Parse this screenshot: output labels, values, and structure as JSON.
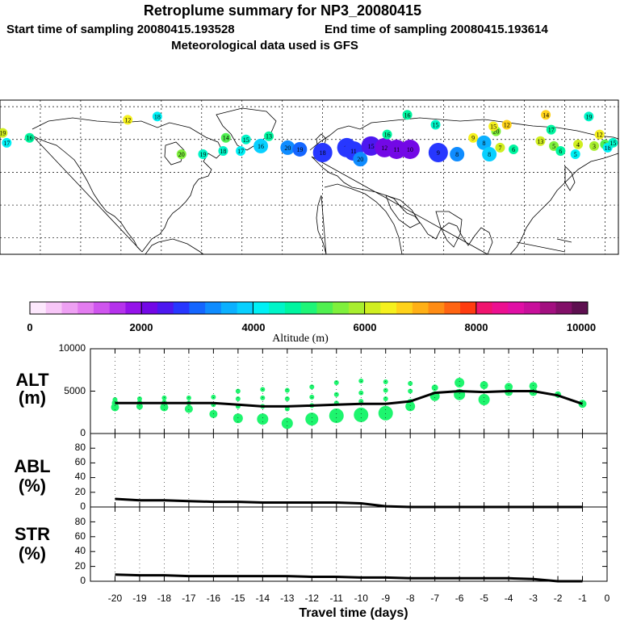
{
  "header": {
    "title": "Retroplume summary for NP3_20080415",
    "start_label": "Start time of sampling 20080415.193528",
    "end_label": "End time of sampling 20080415.193614",
    "met_label": "Meteorological data used is GFS"
  },
  "colors": {
    "scale": [
      "#fde8fd",
      "#f7c6f7",
      "#eea0f3",
      "#e37cf0",
      "#cf55ee",
      "#b532ec",
      "#9513ea",
      "#7308e6",
      "#4d18f0",
      "#2737ff",
      "#1466ff",
      "#0f8cff",
      "#0bb0ff",
      "#08d0ff",
      "#00f0f5",
      "#00f5c8",
      "#00f5a0",
      "#1ef578",
      "#50f050",
      "#7ff03c",
      "#a8ee2e",
      "#d0ee20",
      "#f5f01e",
      "#ffd21a",
      "#ffb016",
      "#ff8c14",
      "#ff6412",
      "#ff3c10",
      "#f0146e",
      "#ec1090",
      "#e010a5",
      "#c8109b",
      "#a31080",
      "#821068",
      "#5e1050"
    ],
    "marker_green": "#1ef56e",
    "line": "#000000"
  },
  "chart_data": [
    {
      "type": "scatter",
      "name": "map",
      "markers": [
        {
          "label": "12",
          "lon": -85,
          "lat": 72,
          "alt": 6500
        },
        {
          "label": "18",
          "lon": -63,
          "lat": 74,
          "alt": 4200
        },
        {
          "label": "19",
          "lon": -178,
          "lat": 64,
          "alt": 6000
        },
        {
          "label": "16",
          "lon": -158,
          "lat": 61,
          "alt": 4600
        },
        {
          "label": "17",
          "lon": -175,
          "lat": 58,
          "alt": 4200
        },
        {
          "label": "20",
          "lon": -45,
          "lat": 51,
          "alt": 5600
        },
        {
          "label": "19",
          "lon": -29,
          "lat": 51,
          "alt": 4400
        },
        {
          "label": "18",
          "lon": -14,
          "lat": 53,
          "alt": 4300
        },
        {
          "label": "17",
          "lon": -1,
          "lat": 53,
          "alt": 4200
        },
        {
          "label": "15",
          "lon": 3,
          "lat": 60,
          "alt": 4500
        },
        {
          "label": "14",
          "lon": -12,
          "lat": 61,
          "alt": 5200
        },
        {
          "label": "16",
          "lon": 14,
          "lat": 56,
          "alt": 3800
        },
        {
          "label": "13",
          "lon": 20,
          "lat": 62,
          "alt": 4800
        },
        {
          "label": "20",
          "lon": 34,
          "lat": 55,
          "alt": 3200
        },
        {
          "label": "19",
          "lon": 43,
          "lat": 54,
          "alt": 3000
        },
        {
          "label": "18",
          "lon": 60,
          "lat": 52,
          "alt": 2800
        },
        {
          "label": "17",
          "lon": 78,
          "lat": 55,
          "alt": 2600
        },
        {
          "label": "11",
          "lon": 83,
          "lat": 53,
          "alt": 2700
        },
        {
          "label": "20",
          "lon": 88,
          "lat": 48,
          "alt": 3400
        },
        {
          "label": "15",
          "lon": 96,
          "lat": 56,
          "alt": 2300
        },
        {
          "label": "12",
          "lon": 106,
          "lat": 55,
          "alt": 2200
        },
        {
          "label": "11",
          "lon": 115,
          "lat": 54,
          "alt": 2100
        },
        {
          "label": "10",
          "lon": 125,
          "lat": 54,
          "alt": 2200
        },
        {
          "label": "9",
          "lon": 146,
          "lat": 52,
          "alt": 2600
        },
        {
          "label": "8",
          "lon": 160,
          "lat": 51,
          "alt": 3300
        },
        {
          "label": "16",
          "lon": 123,
          "lat": 75,
          "alt": 4700
        },
        {
          "label": "15",
          "lon": 144,
          "lat": 69,
          "alt": 4500
        },
        {
          "label": "16",
          "lon": 108,
          "lat": 63,
          "alt": 4600
        },
        {
          "label": "9",
          "lon": 172,
          "lat": 61,
          "alt": 6500
        },
        {
          "label": "8",
          "lon": 180,
          "lat": 58,
          "alt": 3500
        },
        {
          "label": "8",
          "lon": 184,
          "lat": 51,
          "alt": 3800
        },
        {
          "label": "7",
          "lon": 192,
          "lat": 55,
          "alt": 6000
        },
        {
          "label": "6",
          "lon": 202,
          "lat": 54,
          "alt": 4600
        },
        {
          "label": "20",
          "lon": 189,
          "lat": 65,
          "alt": 5500
        },
        {
          "label": "12",
          "lon": 197,
          "lat": 69,
          "alt": 6800
        },
        {
          "label": "15",
          "lon": 187,
          "lat": 68,
          "alt": 6500
        },
        {
          "label": "14",
          "lon": 226,
          "lat": 75,
          "alt": 6800
        },
        {
          "label": "17",
          "lon": 230,
          "lat": 66,
          "alt": 4800
        },
        {
          "label": "19",
          "lon": 258,
          "lat": 74,
          "alt": 4400
        },
        {
          "label": "13",
          "lon": 222,
          "lat": 59,
          "alt": 6000
        },
        {
          "label": "5",
          "lon": 232,
          "lat": 56,
          "alt": 5600
        },
        {
          "label": "6",
          "lon": 237,
          "lat": 53,
          "alt": 4600
        },
        {
          "label": "4",
          "lon": 250,
          "lat": 57,
          "alt": 6200
        },
        {
          "label": "5",
          "lon": 248,
          "lat": 51,
          "alt": 4200
        },
        {
          "label": "3",
          "lon": 262,
          "lat": 56,
          "alt": 5900
        },
        {
          "label": "2",
          "lon": 270,
          "lat": 57,
          "alt": 5200
        },
        {
          "label": "12",
          "lon": 266,
          "lat": 63,
          "alt": 6500
        },
        {
          "label": "18",
          "lon": 272,
          "lat": 55,
          "alt": 4200
        },
        {
          "label": "15",
          "lon": 276,
          "lat": 58,
          "alt": 4300
        }
      ]
    },
    {
      "type": "colorbar",
      "name": "altitude-colorbar",
      "range": [
        0,
        10000
      ],
      "tick_labels": [
        "0",
        "2000",
        "4000",
        "6000",
        "8000",
        "10000"
      ],
      "xlabel": "Altitude (m)"
    },
    {
      "type": "line",
      "name": "alt",
      "ylabel": "ALT\n(m)",
      "ylabel_line1": "ALT",
      "ylabel_line2": "(m)",
      "ylim": [
        0,
        10000
      ],
      "ytick_labels": [
        "10000",
        "5000",
        "0"
      ],
      "x": [
        -20,
        -19,
        -18,
        -17,
        -16,
        -15,
        -14,
        -13,
        -12,
        -11,
        -10,
        -9,
        -8,
        -7,
        -6,
        -5,
        -4,
        -3,
        -2,
        -1
      ],
      "values": [
        3600,
        3600,
        3600,
        3600,
        3600,
        3400,
        3200,
        3200,
        3300,
        3400,
        3500,
        3500,
        3800,
        4800,
        5000,
        4900,
        5000,
        5000,
        4500,
        3500
      ],
      "scatter": [
        {
          "x": -20,
          "y": 3100,
          "r": 5
        },
        {
          "x": -20,
          "y": 3600,
          "r": 4
        },
        {
          "x": -20,
          "y": 4000,
          "r": 3
        },
        {
          "x": -19,
          "y": 3200,
          "r": 4
        },
        {
          "x": -19,
          "y": 3700,
          "r": 3
        },
        {
          "x": -19,
          "y": 4100,
          "r": 3
        },
        {
          "x": -18,
          "y": 3100,
          "r": 5
        },
        {
          "x": -18,
          "y": 3700,
          "r": 3
        },
        {
          "x": -18,
          "y": 4200,
          "r": 3
        },
        {
          "x": -17,
          "y": 2900,
          "r": 5
        },
        {
          "x": -17,
          "y": 3600,
          "r": 3
        },
        {
          "x": -17,
          "y": 4200,
          "r": 3
        },
        {
          "x": -16,
          "y": 2300,
          "r": 5
        },
        {
          "x": -16,
          "y": 3400,
          "r": 3
        },
        {
          "x": -16,
          "y": 4300,
          "r": 3
        },
        {
          "x": -15,
          "y": 1800,
          "r": 6
        },
        {
          "x": -15,
          "y": 3200,
          "r": 3
        },
        {
          "x": -15,
          "y": 4100,
          "r": 3
        },
        {
          "x": -15,
          "y": 5000,
          "r": 3
        },
        {
          "x": -14,
          "y": 1700,
          "r": 7
        },
        {
          "x": -14,
          "y": 3200,
          "r": 3
        },
        {
          "x": -14,
          "y": 4200,
          "r": 3
        },
        {
          "x": -14,
          "y": 5200,
          "r": 3
        },
        {
          "x": -13,
          "y": 1200,
          "r": 7
        },
        {
          "x": -13,
          "y": 2900,
          "r": 3
        },
        {
          "x": -13,
          "y": 4100,
          "r": 3
        },
        {
          "x": -13,
          "y": 5100,
          "r": 3
        },
        {
          "x": -12,
          "y": 1700,
          "r": 8
        },
        {
          "x": -12,
          "y": 3300,
          "r": 3
        },
        {
          "x": -12,
          "y": 4300,
          "r": 3
        },
        {
          "x": -12,
          "y": 5500,
          "r": 3
        },
        {
          "x": -11,
          "y": 2100,
          "r": 9
        },
        {
          "x": -11,
          "y": 3600,
          "r": 3
        },
        {
          "x": -11,
          "y": 4600,
          "r": 3
        },
        {
          "x": -11,
          "y": 6000,
          "r": 3
        },
        {
          "x": -10,
          "y": 2200,
          "r": 9
        },
        {
          "x": -10,
          "y": 3800,
          "r": 3
        },
        {
          "x": -10,
          "y": 4800,
          "r": 3
        },
        {
          "x": -10,
          "y": 6200,
          "r": 3
        },
        {
          "x": -9,
          "y": 2400,
          "r": 9
        },
        {
          "x": -9,
          "y": 4100,
          "r": 3
        },
        {
          "x": -9,
          "y": 5100,
          "r": 3
        },
        {
          "x": -9,
          "y": 6100,
          "r": 3
        },
        {
          "x": -8,
          "y": 3200,
          "r": 6
        },
        {
          "x": -8,
          "y": 3700,
          "r": 4
        },
        {
          "x": -8,
          "y": 5000,
          "r": 3
        },
        {
          "x": -8,
          "y": 5900,
          "r": 3
        },
        {
          "x": -7,
          "y": 4400,
          "r": 6
        },
        {
          "x": -7,
          "y": 5400,
          "r": 4
        },
        {
          "x": -6,
          "y": 4600,
          "r": 7
        },
        {
          "x": -6,
          "y": 6000,
          "r": 6
        },
        {
          "x": -5,
          "y": 4000,
          "r": 7
        },
        {
          "x": -5,
          "y": 5700,
          "r": 5
        },
        {
          "x": -4,
          "y": 4900,
          "r": 5
        },
        {
          "x": -4,
          "y": 5500,
          "r": 5
        },
        {
          "x": -3,
          "y": 4900,
          "r": 5
        },
        {
          "x": -3,
          "y": 5600,
          "r": 5
        },
        {
          "x": -2,
          "y": 4600,
          "r": 4
        },
        {
          "x": -1,
          "y": 3500,
          "r": 5
        }
      ]
    },
    {
      "type": "line",
      "name": "abl",
      "ylabel_line1": "ABL",
      "ylabel_line2": "(%)",
      "ylim": [
        0,
        100
      ],
      "ytick_labels": [
        "80",
        "60",
        "40",
        "20",
        "0"
      ],
      "x": [
        -20,
        -19,
        -18,
        -17,
        -16,
        -15,
        -14,
        -13,
        -12,
        -11,
        -10,
        -9,
        -8,
        -7,
        -6,
        -5,
        -4,
        -3,
        -2,
        -1
      ],
      "values": [
        11,
        9,
        9,
        8,
        7,
        7,
        6,
        6,
        6,
        6,
        5,
        1,
        0,
        0,
        0,
        0,
        0,
        0,
        0,
        0
      ]
    },
    {
      "type": "line",
      "name": "str",
      "ylabel_line1": "STR",
      "ylabel_line2": "(%)",
      "ylim": [
        0,
        100
      ],
      "ytick_labels": [
        "80",
        "60",
        "40",
        "20",
        "0"
      ],
      "x": [
        -20,
        -19,
        -18,
        -17,
        -16,
        -15,
        -14,
        -13,
        -12,
        -11,
        -10,
        -9,
        -8,
        -7,
        -6,
        -5,
        -4,
        -3,
        -2,
        -1
      ],
      "values": [
        9,
        8,
        8,
        7,
        7,
        7,
        7,
        7,
        6,
        6,
        5,
        5,
        4,
        4,
        4,
        4,
        4,
        3,
        0,
        0
      ],
      "xlabel": "Travel time (days)",
      "xtick_labels": [
        "-20",
        "-19",
        "-18",
        "-17",
        "-16",
        "-15",
        "-14",
        "-13",
        "-12",
        "-11",
        "-10",
        "-9",
        "-8",
        "-7",
        "-6",
        "-5",
        "-4",
        "-3",
        "-2",
        "-1",
        "0"
      ]
    }
  ]
}
